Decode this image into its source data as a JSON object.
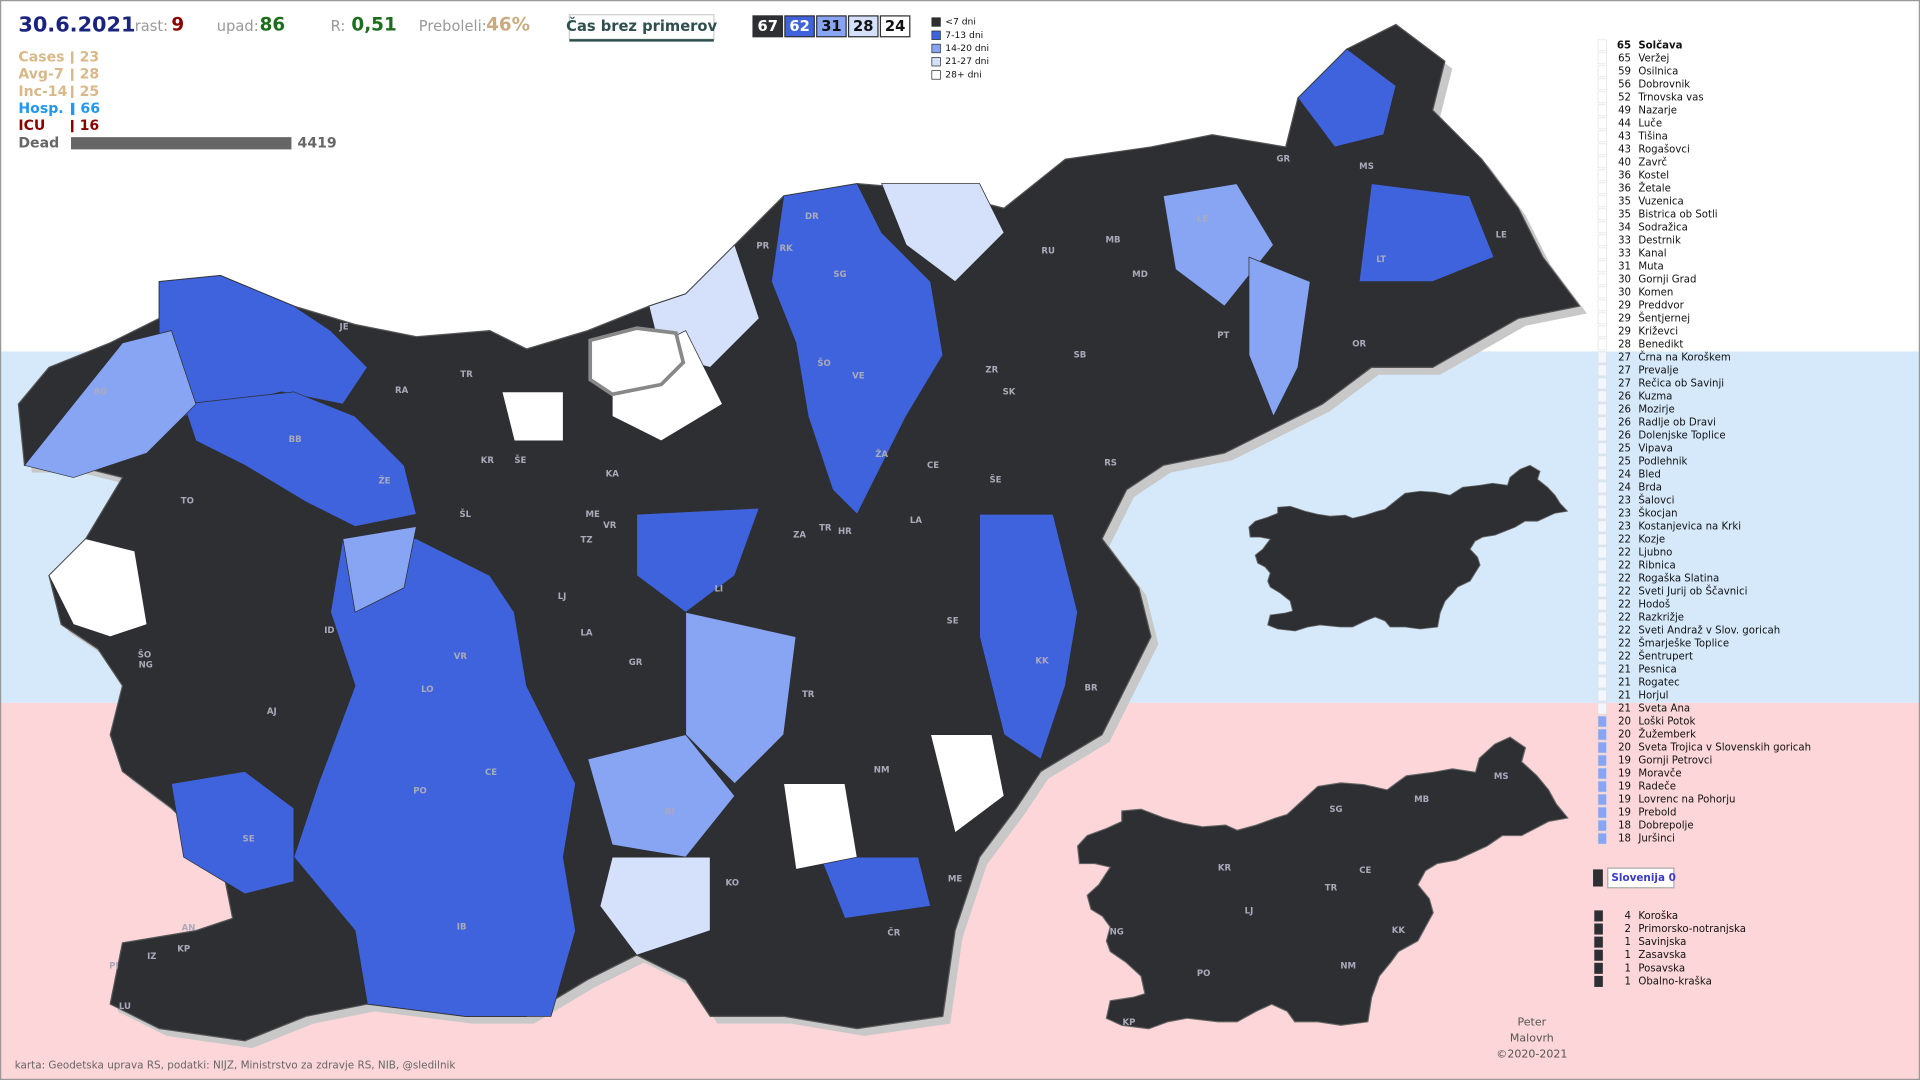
{
  "header": {
    "date": "30.6.2021",
    "stats": [
      {
        "label": "rast:",
        "value": 9
      },
      {
        "label": "upad:",
        "value": 86
      },
      {
        "label": "R:",
        "value": "0,51"
      },
      {
        "label": "Preboleli:",
        "value": "46%"
      }
    ],
    "button": "Čas brez primerov",
    "counts": [
      67,
      62,
      31,
      28,
      24
    ],
    "legend": [
      "<7 dni",
      "7-13 dni",
      "14-20 dni",
      "21-27 dni",
      "28+ dni"
    ]
  },
  "indicators": [
    {
      "label": "Cases",
      "value": 23
    },
    {
      "label": "Avg-7",
      "value": 28
    },
    {
      "label": "Inc-14",
      "value": 25
    },
    {
      "label": "Hosp.",
      "value": 66
    },
    {
      "label": "ICU",
      "value": 16
    },
    {
      "label": "Dead",
      "value": 4419
    }
  ],
  "municipalities": [
    {
      "days": 65,
      "name": "Solčava"
    },
    {
      "days": 65,
      "name": "Veržej"
    },
    {
      "days": 59,
      "name": "Osilnica"
    },
    {
      "days": 56,
      "name": "Dobrovnik"
    },
    {
      "days": 52,
      "name": "Trnovska vas"
    },
    {
      "days": 49,
      "name": "Nazarje"
    },
    {
      "days": 44,
      "name": "Luče"
    },
    {
      "days": 43,
      "name": "Tišina"
    },
    {
      "days": 43,
      "name": "Rogašovci"
    },
    {
      "days": 40,
      "name": "Zavrč"
    },
    {
      "days": 36,
      "name": "Kostel"
    },
    {
      "days": 36,
      "name": "Žetale"
    },
    {
      "days": 35,
      "name": "Vuzenica"
    },
    {
      "days": 35,
      "name": "Bistrica ob Sotli"
    },
    {
      "days": 34,
      "name": "Sodražica"
    },
    {
      "days": 33,
      "name": "Destrnik"
    },
    {
      "days": 33,
      "name": "Kanal"
    },
    {
      "days": 31,
      "name": "Muta"
    },
    {
      "days": 30,
      "name": "Gornji Grad"
    },
    {
      "days": 30,
      "name": "Komen"
    },
    {
      "days": 29,
      "name": "Preddvor"
    },
    {
      "days": 29,
      "name": "Šentjernej"
    },
    {
      "days": 29,
      "name": "Križevci"
    },
    {
      "days": 28,
      "name": "Benedikt"
    },
    {
      "days": 27,
      "name": "Črna na Koroškem"
    },
    {
      "days": 27,
      "name": "Prevalje"
    },
    {
      "days": 27,
      "name": "Rečica ob Savinji"
    },
    {
      "days": 26,
      "name": "Kuzma"
    },
    {
      "days": 26,
      "name": "Mozirje"
    },
    {
      "days": 26,
      "name": "Radlje ob Dravi"
    },
    {
      "days": 26,
      "name": "Dolenjske Toplice"
    },
    {
      "days": 25,
      "name": "Vipava"
    },
    {
      "days": 25,
      "name": "Podlehnik"
    },
    {
      "days": 24,
      "name": "Bled"
    },
    {
      "days": 24,
      "name": "Brda"
    },
    {
      "days": 23,
      "name": "Šalovci"
    },
    {
      "days": 23,
      "name": "Škocjan"
    },
    {
      "days": 23,
      "name": "Kostanjevica na Krki"
    },
    {
      "days": 22,
      "name": "Kozje"
    },
    {
      "days": 22,
      "name": "Ljubno"
    },
    {
      "days": 22,
      "name": "Ribnica"
    },
    {
      "days": 22,
      "name": "Rogaška Slatina"
    },
    {
      "days": 22,
      "name": "Sveti Jurij ob Ščavnici"
    },
    {
      "days": 22,
      "name": "Hodoš"
    },
    {
      "days": 22,
      "name": "Razkrižje"
    },
    {
      "days": 22,
      "name": "Sveti Andraž v Slov. goricah"
    },
    {
      "days": 22,
      "name": "Šmarješke Toplice"
    },
    {
      "days": 22,
      "name": "Šentrupert"
    },
    {
      "days": 21,
      "name": "Pesnica"
    },
    {
      "days": 21,
      "name": "Rogatec"
    },
    {
      "days": 21,
      "name": "Horjul"
    },
    {
      "days": 21,
      "name": "Sveta Ana"
    },
    {
      "days": 20,
      "name": "Loški Potok"
    },
    {
      "days": 20,
      "name": "Žužemberk"
    },
    {
      "days": 20,
      "name": "Sveta Trojica v Slovenskih goricah"
    },
    {
      "days": 19,
      "name": "Gornji Petrovci"
    },
    {
      "days": 19,
      "name": "Moravče"
    },
    {
      "days": 19,
      "name": "Radeče"
    },
    {
      "days": 19,
      "name": "Lovrenc na Pohorju"
    },
    {
      "days": 19,
      "name": "Prebold"
    },
    {
      "days": 18,
      "name": "Dobrepolje"
    },
    {
      "days": 18,
      "name": "Juršinci"
    }
  ],
  "country": "Slovenija 0",
  "regions": [
    {
      "count": 4,
      "name": "Koroška"
    },
    {
      "count": 2,
      "name": "Primorsko-notranjska"
    },
    {
      "count": 1,
      "name": "Savinjska"
    },
    {
      "count": 1,
      "name": "Zasavska"
    },
    {
      "count": 1,
      "name": "Posavska"
    },
    {
      "count": 1,
      "name": "Obalno-kraška"
    }
  ],
  "map_labels": [
    "JE",
    "TR",
    "RA",
    "KR",
    "ŠE",
    "KA",
    "BO",
    "BB",
    "ŽE",
    "TO",
    "ŠL",
    "ME",
    "VR",
    "TZ",
    "LJ",
    "LA",
    "GR",
    "ID",
    "ŠO",
    "NG",
    "AJ",
    "LO",
    "VR",
    "PO",
    "CE",
    "SE",
    "IB",
    "KO",
    "RI",
    "NM",
    "ČR",
    "ME",
    "KK",
    "BR",
    "SE",
    "TR",
    "LI",
    "ZA",
    "TR",
    "HR",
    "LA",
    "CE",
    "ŠE",
    "ŽA",
    "VE",
    "ŠO",
    "SG",
    "DR",
    "RK",
    "PR",
    "MB",
    "RU",
    "SB",
    "MD",
    "ZR",
    "SK",
    "RS",
    "PT",
    "OR",
    "MS",
    "GR",
    "LE",
    "LT",
    "LE",
    "AN",
    "IZ",
    "KP",
    "PI",
    "LU"
  ],
  "inset_labels": [
    "SG",
    "MB",
    "MS",
    "KR",
    "CE",
    "TR",
    "LJ",
    "KK",
    "NG",
    "PO",
    "NM",
    "KP"
  ],
  "author": [
    "Peter",
    "Malovrh",
    "©2020-2021"
  ],
  "credits": "karta: Geodetska uprava RS,  podatki: NIJZ, Ministrstvo za zdravje RS, NIB, @sledilnik"
}
